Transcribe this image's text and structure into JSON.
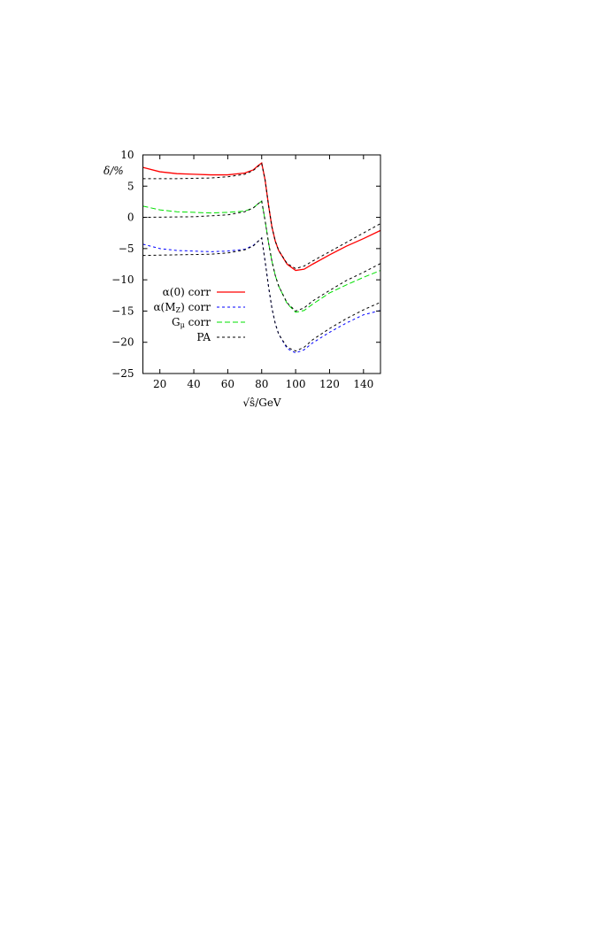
{
  "chart_data": {
    "type": "line",
    "xlabel": "√ŝ/GeV",
    "ylabel": "δ/%",
    "xlim": [
      10,
      150
    ],
    "ylim": [
      -25,
      10
    ],
    "xticks": [
      20,
      40,
      60,
      80,
      100,
      120,
      140
    ],
    "yticks": [
      10,
      5,
      0,
      -5,
      -10,
      -15,
      -20,
      -25
    ],
    "grid": false,
    "legend_placement": "center-left",
    "series": [
      {
        "name": "α(0) corr",
        "color": "#ff0000",
        "style": "solid",
        "x": [
          10,
          20,
          30,
          40,
          50,
          60,
          70,
          75,
          78,
          80,
          82,
          84,
          86,
          88,
          90,
          95,
          100,
          105,
          110,
          120,
          130,
          140,
          150
        ],
        "y": [
          8.0,
          7.3,
          7.0,
          6.9,
          6.8,
          6.8,
          7.1,
          7.6,
          8.3,
          8.7,
          6,
          2,
          -1.5,
          -3.8,
          -5.3,
          -7.5,
          -8.5,
          -8.3,
          -7.5,
          -6.0,
          -4.6,
          -3.4,
          -2.1
        ]
      },
      {
        "name": "PA",
        "color": "#000000",
        "style": "dotted",
        "legend": false,
        "x": [
          10,
          30,
          50,
          60,
          70,
          75,
          78,
          80,
          82,
          84,
          86,
          88,
          90,
          95,
          100,
          105,
          110,
          120,
          130,
          140,
          150
        ],
        "y": [
          6.2,
          6.2,
          6.3,
          6.5,
          6.9,
          7.5,
          8.2,
          8.6,
          6,
          2,
          -1.5,
          -3.8,
          -5.3,
          -7.4,
          -8.2,
          -7.8,
          -7.0,
          -5.5,
          -4.0,
          -2.5,
          -1.0
        ]
      },
      {
        "name": "α(M_Z) corr",
        "color": "#0000ff",
        "style": "dotted",
        "x": [
          10,
          20,
          30,
          40,
          50,
          60,
          70,
          75,
          78,
          80,
          82,
          84,
          86,
          88,
          90,
          95,
          100,
          105,
          110,
          120,
          130,
          140,
          150
        ],
        "y": [
          -4.3,
          -5.0,
          -5.3,
          -5.4,
          -5.5,
          -5.4,
          -5.1,
          -4.5,
          -3.8,
          -3.3,
          -7,
          -11,
          -14.5,
          -17,
          -18.7,
          -21,
          -21.7,
          -21.2,
          -20.1,
          -18.4,
          -16.9,
          -15.6,
          -14.9
        ]
      },
      {
        "name": "PA",
        "color": "#000000",
        "style": "dotted",
        "legend": false,
        "x": [
          10,
          30,
          50,
          60,
          70,
          75,
          78,
          80,
          82,
          84,
          86,
          88,
          90,
          95,
          100,
          105,
          110,
          120,
          130,
          140,
          150
        ],
        "y": [
          -6.1,
          -6.0,
          -5.9,
          -5.7,
          -5.2,
          -4.6,
          -3.8,
          -3.3,
          -7,
          -11,
          -14.5,
          -17,
          -18.7,
          -20.8,
          -21.4,
          -20.8,
          -19.6,
          -17.8,
          -16.2,
          -14.8,
          -13.6
        ]
      },
      {
        "name": "G_μ corr",
        "color": "#00e000",
        "style": "dashed",
        "x": [
          10,
          20,
          30,
          40,
          50,
          60,
          70,
          75,
          78,
          80,
          82,
          84,
          86,
          88,
          90,
          95,
          100,
          105,
          110,
          120,
          130,
          140,
          150
        ],
        "y": [
          1.8,
          1.2,
          0.9,
          0.8,
          0.7,
          0.8,
          1.0,
          1.5,
          2.2,
          2.6,
          -0.5,
          -4,
          -7,
          -9.3,
          -11,
          -13.8,
          -15.2,
          -14.9,
          -13.9,
          -12.1,
          -10.8,
          -9.6,
          -8.5
        ]
      },
      {
        "name": "PA",
        "color": "#000000",
        "style": "dotted",
        "x": [
          10,
          40,
          60,
          70,
          75,
          78,
          80,
          82,
          84,
          86,
          88,
          90,
          95,
          100,
          105,
          110,
          120,
          130,
          140,
          150
        ],
        "y": [
          0,
          0.1,
          0.4,
          0.9,
          1.5,
          2.2,
          2.6,
          -0.5,
          -4,
          -7,
          -9.3,
          -11,
          -13.7,
          -15.0,
          -14.5,
          -13.4,
          -11.7,
          -10.1,
          -8.8,
          -7.4
        ]
      }
    ]
  }
}
